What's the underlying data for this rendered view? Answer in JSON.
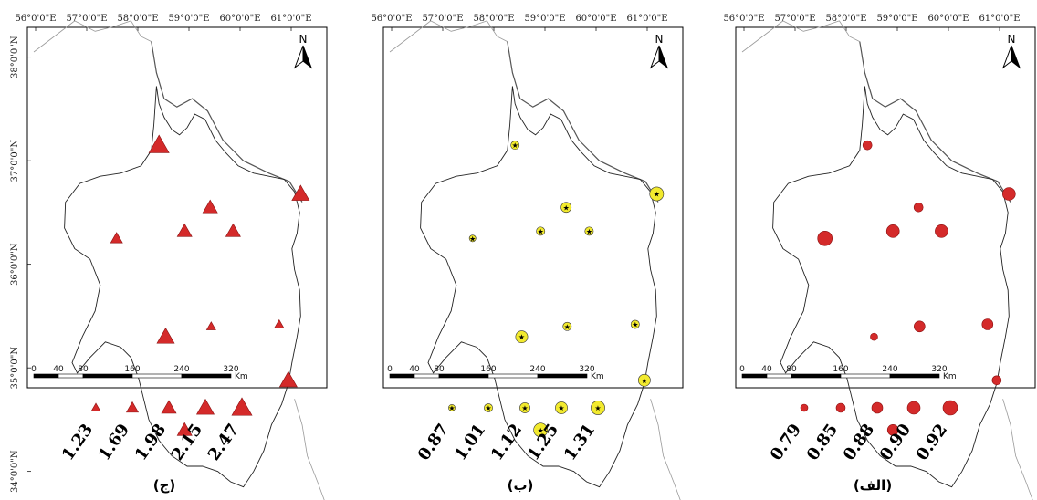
{
  "longitude_ticks": [
    "56°0'0\"E",
    "57°0'0\"E",
    "58°0'0\"E",
    "59°0'0\"E",
    "60°0'0\"E",
    "61°0'0\"E"
  ],
  "latitude_ticks": [
    "38°0'0\"N",
    "37°0'0\"N",
    "36°0'0\"N",
    "35°0'0\"N",
    "34°0'0\"N"
  ],
  "north_arrow": {
    "letter": "N",
    "icon": "north-arrow-icon"
  },
  "scale_bar": {
    "labels": [
      "0",
      "40",
      "80",
      "160",
      "240",
      "320"
    ],
    "unit": "Km",
    "km_values": [
      0,
      40,
      80,
      160,
      240,
      320
    ]
  },
  "stations": [
    {
      "id": "s1",
      "lon": 58.45,
      "lat": 37.15
    },
    {
      "id": "s2",
      "lon": 57.62,
      "lat": 36.25
    },
    {
      "id": "s3",
      "lon": 58.95,
      "lat": 36.32
    },
    {
      "id": "s4",
      "lon": 59.45,
      "lat": 36.55
    },
    {
      "id": "s5",
      "lon": 59.9,
      "lat": 36.32
    },
    {
      "id": "s6",
      "lon": 61.22,
      "lat": 36.68
    },
    {
      "id": "s7",
      "lon": 58.58,
      "lat": 35.3
    },
    {
      "id": "s8",
      "lon": 59.47,
      "lat": 35.4
    },
    {
      "id": "s9",
      "lon": 60.8,
      "lat": 35.42
    },
    {
      "id": "s10",
      "lon": 60.98,
      "lat": 34.88
    },
    {
      "id": "s11",
      "lon": 58.95,
      "lat": 34.4
    }
  ],
  "panels": [
    {
      "id": "a",
      "caption": "(ج)",
      "symbol": "triangle",
      "color": "#d42a2a",
      "legend": [
        "1.23",
        "1.69",
        "1.98",
        "2.15",
        "2.47"
      ],
      "station_classes": [
        4,
        1,
        2,
        2,
        2,
        3,
        3,
        0,
        0,
        3,
        2
      ]
    },
    {
      "id": "b",
      "caption": "(ب)",
      "symbol": "star-circle",
      "color": "#f2ea2e",
      "legend": [
        "0.87",
        "1.01",
        "1.12",
        "1.25",
        "1.31"
      ],
      "station_classes": [
        1,
        0,
        1,
        2,
        1,
        4,
        3,
        1,
        1,
        3,
        4
      ]
    },
    {
      "id": "c",
      "caption": "(الف)",
      "symbol": "circle",
      "color": "#d42a2a",
      "legend": [
        "0.79",
        "0.85",
        "0.88",
        "0.90",
        "0.92"
      ],
      "station_classes": [
        1,
        4,
        3,
        1,
        3,
        3,
        0,
        2,
        2,
        1,
        2
      ]
    }
  ]
}
